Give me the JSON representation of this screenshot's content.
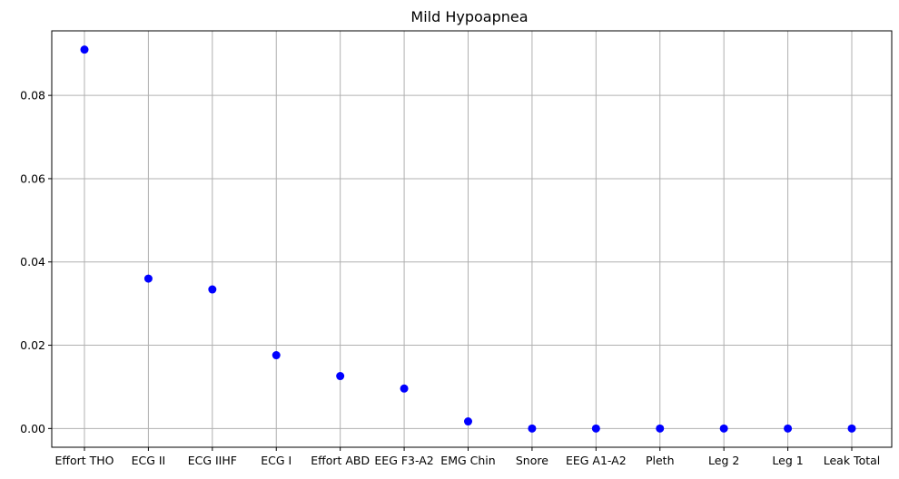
{
  "chart_data": {
    "type": "scatter",
    "title": "Mild Hypoapnea",
    "xlabel": "",
    "ylabel": "",
    "categories": [
      "Effort THO",
      "ECG II",
      "ECG IIHF",
      "ECG I",
      "Effort ABD",
      "EEG F3-A2",
      "EMG Chin",
      "Snore",
      "EEG A1-A2",
      "Pleth",
      "Leg 2",
      "Leg 1",
      "Leak Total"
    ],
    "values": [
      0.091,
      0.036,
      0.0334,
      0.0176,
      0.0126,
      0.0096,
      0.0017,
      0.0,
      0.0,
      0.0,
      0.0,
      0.0,
      0.0
    ],
    "ylim": [
      -0.0045,
      0.0955
    ],
    "yticks": [
      0.0,
      0.02,
      0.04,
      0.06,
      0.08
    ],
    "ytick_labels": [
      "0.00",
      "0.02",
      "0.04",
      "0.06",
      "0.08"
    ],
    "grid": true,
    "marker_color": "#0000ff"
  }
}
